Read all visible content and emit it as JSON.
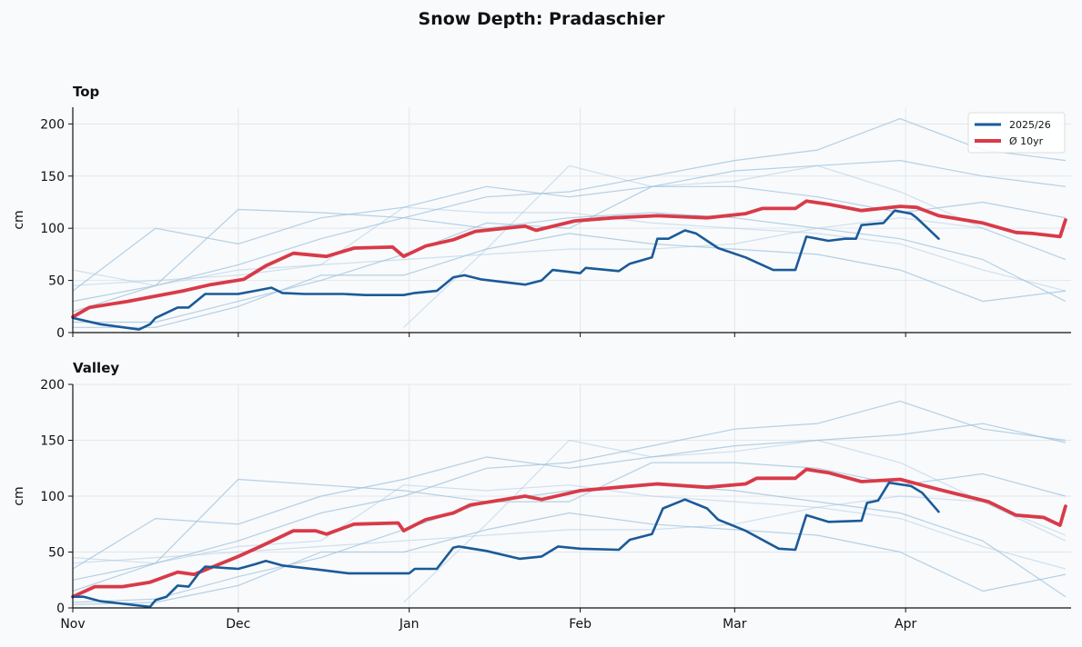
{
  "title": "Snow Depth: Pradaschier",
  "colors": {
    "current": "#1b5a98",
    "average": "#d93a48",
    "history": "#9fc1dc",
    "background": "#f8fafc"
  },
  "legend": {
    "position": "top-right",
    "current_label": "2025/26",
    "average_label": "Ø 10yr"
  },
  "chart_data": [
    {
      "type": "line",
      "title": "Top",
      "ylabel": "cm",
      "ylim": [
        0,
        216
      ],
      "yticks": [
        0,
        50,
        100,
        150,
        200
      ],
      "xlim": [
        "Nov 1",
        "May 1"
      ],
      "xticks": [
        "Nov",
        "Dec",
        "Jan",
        "Feb",
        "Mar",
        "Apr"
      ],
      "show_xtick_labels": false,
      "grid": true,
      "legend": true,
      "series": [
        {
          "name": "2025/26",
          "x": [
            "Nov 1",
            "Nov 6",
            "Nov 13",
            "Nov 15",
            "Nov 16",
            "Nov 20",
            "Nov 22",
            "Nov 25",
            "Dec 1",
            "Dec 4",
            "Dec 7",
            "Dec 9",
            "Dec 13",
            "Dec 20",
            "Dec 24",
            "Dec 31",
            "Jan 2",
            "Jan 6",
            "Jan 9",
            "Jan 11",
            "Jan 14",
            "Jan 22",
            "Jan 25",
            "Jan 27",
            "Feb 1",
            "Feb 2",
            "Feb 8",
            "Feb 10",
            "Feb 14",
            "Feb 15",
            "Feb 17",
            "Feb 20",
            "Feb 22",
            "Feb 26",
            "Mar 3",
            "Mar 8",
            "Mar 12",
            "Mar 14",
            "Mar 18",
            "Mar 21",
            "Mar 23",
            "Mar 24",
            "Mar 28",
            "Mar 30",
            "Apr 2",
            "Apr 3",
            "Apr 7"
          ],
          "values": [
            14,
            8,
            3,
            8,
            14,
            24,
            24,
            37,
            37,
            40,
            43,
            38,
            37,
            37,
            36,
            36,
            38,
            40,
            53,
            55,
            51,
            46,
            50,
            60,
            57,
            62,
            59,
            66,
            72,
            90,
            90,
            98,
            95,
            81,
            72,
            60,
            60,
            92,
            88,
            90,
            90,
            103,
            105,
            117,
            114,
            110,
            90
          ]
        },
        {
          "name": "Ø 10yr",
          "x": [
            "Nov 1",
            "Nov 4",
            "Nov 11",
            "Nov 21",
            "Nov 26",
            "Dec 2",
            "Dec 6",
            "Dec 11",
            "Dec 17",
            "Dec 22",
            "Dec 29",
            "Dec 31",
            "Jan 4",
            "Jan 9",
            "Jan 13",
            "Jan 22",
            "Jan 24",
            "Jan 31",
            "Feb 7",
            "Feb 15",
            "Feb 24",
            "Mar 3",
            "Mar 6",
            "Mar 12",
            "Mar 14",
            "Mar 18",
            "Mar 24",
            "Mar 31",
            "Apr 3",
            "Apr 7",
            "Apr 15",
            "Apr 21",
            "Apr 24",
            "Apr 29",
            "Apr 30"
          ],
          "values": [
            15,
            24,
            30,
            40,
            46,
            51,
            64,
            76,
            73,
            81,
            82,
            73,
            83,
            89,
            97,
            102,
            98,
            107,
            110,
            112,
            110,
            114,
            119,
            119,
            126,
            123,
            117,
            121,
            120,
            112,
            105,
            96,
            95,
            92,
            108
          ]
        }
      ],
      "history": {
        "x": [
          "Nov 1",
          "Nov 16",
          "Dec 1",
          "Dec 16",
          "Dec 31",
          "Jan 15",
          "Jan 30",
          "Feb 14",
          "Mar 1",
          "Mar 16",
          "Mar 31",
          "Apr 15",
          "Apr 30"
        ],
        "series": [
          [
            30,
            45,
            65,
            90,
            110,
            130,
            135,
            150,
            165,
            175,
            205,
            175,
            165
          ],
          [
            null,
            null,
            null,
            null,
            5,
            80,
            160,
            140,
            145,
            160,
            135,
            100,
            70
          ],
          [
            40,
            100,
            85,
            110,
            120,
            140,
            130,
            140,
            155,
            160,
            165,
            150,
            140
          ],
          [
            20,
            45,
            118,
            115,
            110,
            100,
            110,
            115,
            110,
            100,
            90,
            70,
            30
          ],
          [
            60,
            45,
            60,
            65,
            120,
            115,
            115,
            105,
            100,
            95,
            85,
            60,
            40
          ],
          [
            10,
            10,
            30,
            50,
            75,
            105,
            100,
            140,
            140,
            130,
            115,
            125,
            110
          ],
          [
            5,
            5,
            25,
            55,
            55,
            80,
            95,
            85,
            80,
            75,
            60,
            30,
            40
          ],
          [
            45,
            50,
            55,
            65,
            70,
            75,
            80,
            80,
            85,
            100,
            110,
            100,
            70
          ]
        ]
      }
    },
    {
      "type": "line",
      "title": "Valley",
      "ylabel": "cm",
      "ylim": [
        0,
        200
      ],
      "yticks": [
        0,
        50,
        100,
        150,
        200
      ],
      "xlim": [
        "Nov 1",
        "May 1"
      ],
      "xticks": [
        "Nov",
        "Dec",
        "Jan",
        "Feb",
        "Mar",
        "Apr"
      ],
      "show_xtick_labels": true,
      "grid": true,
      "legend": false,
      "series": [
        {
          "name": "2025/26",
          "x": [
            "Nov 1",
            "Nov 3",
            "Nov 6",
            "Nov 15",
            "Nov 16",
            "Nov 18",
            "Nov 20",
            "Nov 22",
            "Nov 24",
            "Nov 25",
            "Dec 1",
            "Dec 4",
            "Dec 6",
            "Dec 9",
            "Dec 16",
            "Dec 21",
            "Jan 1",
            "Jan 2",
            "Jan 6",
            "Jan 9",
            "Jan 10",
            "Jan 15",
            "Jan 21",
            "Jan 25",
            "Jan 28",
            "Feb 1",
            "Feb 8",
            "Feb 10",
            "Feb 14",
            "Feb 16",
            "Feb 20",
            "Feb 24",
            "Feb 26",
            "Mar 3",
            "Mar 9",
            "Mar 12",
            "Mar 14",
            "Mar 18",
            "Mar 24",
            "Mar 25",
            "Mar 27",
            "Mar 29",
            "Apr 2",
            "Apr 4",
            "Apr 7"
          ],
          "values": [
            10,
            10,
            6,
            1,
            7,
            10,
            20,
            19,
            32,
            37,
            35,
            39,
            42,
            38,
            34,
            31,
            31,
            35,
            35,
            54,
            55,
            51,
            44,
            46,
            55,
            53,
            52,
            61,
            66,
            89,
            97,
            89,
            79,
            69,
            53,
            52,
            83,
            77,
            78,
            94,
            96,
            112,
            109,
            103,
            86
          ]
        },
        {
          "name": "Ø 10yr",
          "x": [
            "Nov 1",
            "Nov 5",
            "Nov 10",
            "Nov 15",
            "Nov 20",
            "Nov 23",
            "Dec 1",
            "Dec 5",
            "Dec 11",
            "Dec 15",
            "Dec 17",
            "Dec 22",
            "Dec 30",
            "Dec 31",
            "Jan 4",
            "Jan 9",
            "Jan 12",
            "Jan 22",
            "Jan 25",
            "Feb 1",
            "Feb 8",
            "Feb 15",
            "Feb 24",
            "Mar 3",
            "Mar 5",
            "Mar 12",
            "Mar 14",
            "Mar 18",
            "Mar 24",
            "Mar 31",
            "Apr 7",
            "Apr 16",
            "Apr 21",
            "Apr 26",
            "Apr 29",
            "Apr 30"
          ],
          "values": [
            10,
            19,
            19,
            23,
            32,
            30,
            46,
            55,
            69,
            69,
            66,
            75,
            76,
            69,
            79,
            85,
            92,
            100,
            97,
            105,
            108,
            111,
            108,
            111,
            116,
            116,
            124,
            121,
            113,
            115,
            106,
            95,
            83,
            81,
            74,
            91
          ]
        }
      ],
      "history": {
        "x": [
          "Nov 1",
          "Nov 16",
          "Dec 1",
          "Dec 16",
          "Dec 31",
          "Jan 15",
          "Jan 30",
          "Feb 14",
          "Mar 1",
          "Mar 16",
          "Mar 31",
          "Apr 15",
          "Apr 30"
        ],
        "series": [
          [
            25,
            40,
            60,
            85,
            100,
            125,
            130,
            145,
            160,
            165,
            185,
            160,
            150
          ],
          [
            null,
            null,
            null,
            null,
            5,
            75,
            150,
            135,
            140,
            150,
            130,
            95,
            60
          ],
          [
            35,
            80,
            75,
            100,
            115,
            135,
            125,
            135,
            145,
            150,
            155,
            165,
            148
          ],
          [
            15,
            40,
            115,
            110,
            105,
            95,
            105,
            110,
            105,
            95,
            85,
            60,
            10
          ],
          [
            45,
            40,
            55,
            60,
            110,
            105,
            110,
            100,
            95,
            90,
            80,
            55,
            35
          ],
          [
            5,
            8,
            28,
            45,
            70,
            95,
            95,
            130,
            130,
            125,
            110,
            120,
            100
          ],
          [
            3,
            5,
            20,
            50,
            50,
            70,
            85,
            75,
            70,
            65,
            50,
            15,
            30
          ],
          [
            40,
            45,
            50,
            55,
            60,
            65,
            70,
            70,
            75,
            90,
            100,
            95,
            65
          ]
        ]
      }
    }
  ]
}
